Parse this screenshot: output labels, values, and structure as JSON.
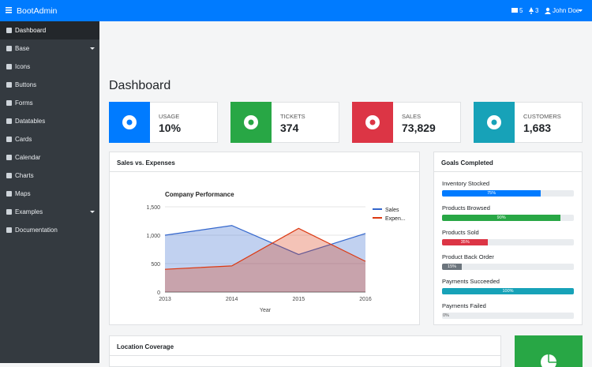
{
  "navbar": {
    "brand": "BootAdmin",
    "messages": "5",
    "notifications": "3",
    "user": "John Doe"
  },
  "sidebar": {
    "items": [
      "Dashboard",
      "Base",
      "Icons",
      "Buttons",
      "Forms",
      "Datatables",
      "Cards",
      "Calendar",
      "Charts",
      "Maps",
      "Examples",
      "Documentation"
    ]
  },
  "page_title": "Dashboard",
  "stats": [
    {
      "label": "USAGE",
      "value": "10%"
    },
    {
      "label": "TICKETS",
      "value": "374"
    },
    {
      "label": "SALES",
      "value": "73,829"
    },
    {
      "label": "CUSTOMERS",
      "value": "1,683"
    }
  ],
  "sales_card": {
    "title": "Sales vs. Expenses",
    "chart_data": {
      "type": "area",
      "title": "Company Performance",
      "x_label": "Year",
      "categories": [
        "2013",
        "2014",
        "2015",
        "2016"
      ],
      "series": [
        {
          "name": "Sales",
          "color": "#3366cc",
          "values": [
            1000,
            1170,
            660,
            1030
          ]
        },
        {
          "name": "Expen...",
          "color": "#dc3912",
          "values": [
            400,
            460,
            1120,
            540
          ]
        }
      ],
      "ylim": [
        0,
        1500
      ],
      "yticks": [
        0,
        500,
        {
          "value": 1000,
          "label": "1,000"
        },
        {
          "value": 1500,
          "label": "1,500"
        }
      ],
      "grid": true
    }
  },
  "goals": {
    "title": "Goals Completed",
    "items": [
      {
        "label": "Inventory Stocked",
        "value": 75,
        "value_label": "75%",
        "color": "#007bff"
      },
      {
        "label": "Products Browsed",
        "value": 90,
        "value_label": "90%",
        "color": "#28a745"
      },
      {
        "label": "Products Sold",
        "value": 35,
        "value_label": "35%",
        "color": "#dc3545"
      },
      {
        "label": "Product Back Order",
        "value": 15,
        "value_label": "15%",
        "color": "#6c757d"
      },
      {
        "label": "Payments Succeeded",
        "value": 100,
        "value_label": "100%",
        "color": "#17a2b8"
      },
      {
        "label": "Payments Failed",
        "value": 0,
        "value_label": "0%",
        "color": "#6c757d"
      }
    ]
  },
  "location": {
    "title": "Location Coverage"
  }
}
